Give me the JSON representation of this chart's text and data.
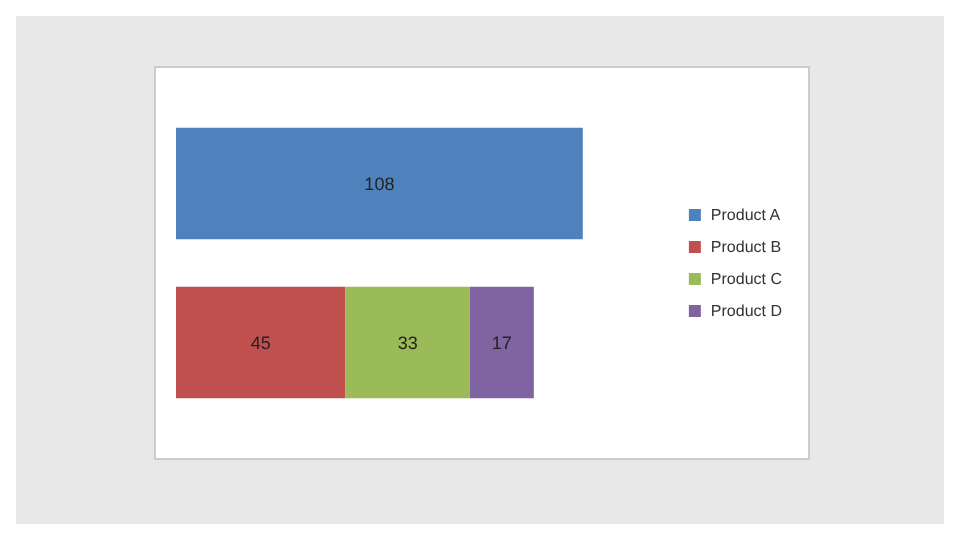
{
  "chart_data": {
    "type": "bar",
    "orientation": "horizontal",
    "stacked": true,
    "categories": [
      null,
      null
    ],
    "series": [
      {
        "name": "Product A",
        "color": "#4f81bd",
        "values": [
          108,
          null
        ]
      },
      {
        "name": "Product B",
        "color": "#c0504d",
        "values": [
          null,
          45
        ]
      },
      {
        "name": "Product C",
        "color": "#9bbb59",
        "values": [
          null,
          33
        ]
      },
      {
        "name": "Product D",
        "color": "#8064a2",
        "values": [
          null,
          17
        ]
      }
    ],
    "data_labels": true,
    "tick_labels": false,
    "legend": "right"
  }
}
